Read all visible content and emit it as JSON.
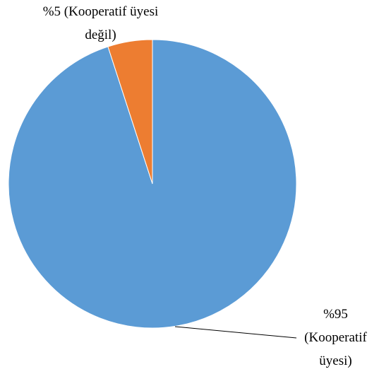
{
  "chart_data": {
    "type": "pie",
    "values": [
      95,
      5
    ],
    "value_labels": [
      "%95 (Kooperatif üyesi)",
      "%5 (Kooperatif üyesi değil)"
    ],
    "colors": [
      "#5b9bd5",
      "#ed7d31"
    ]
  }
}
